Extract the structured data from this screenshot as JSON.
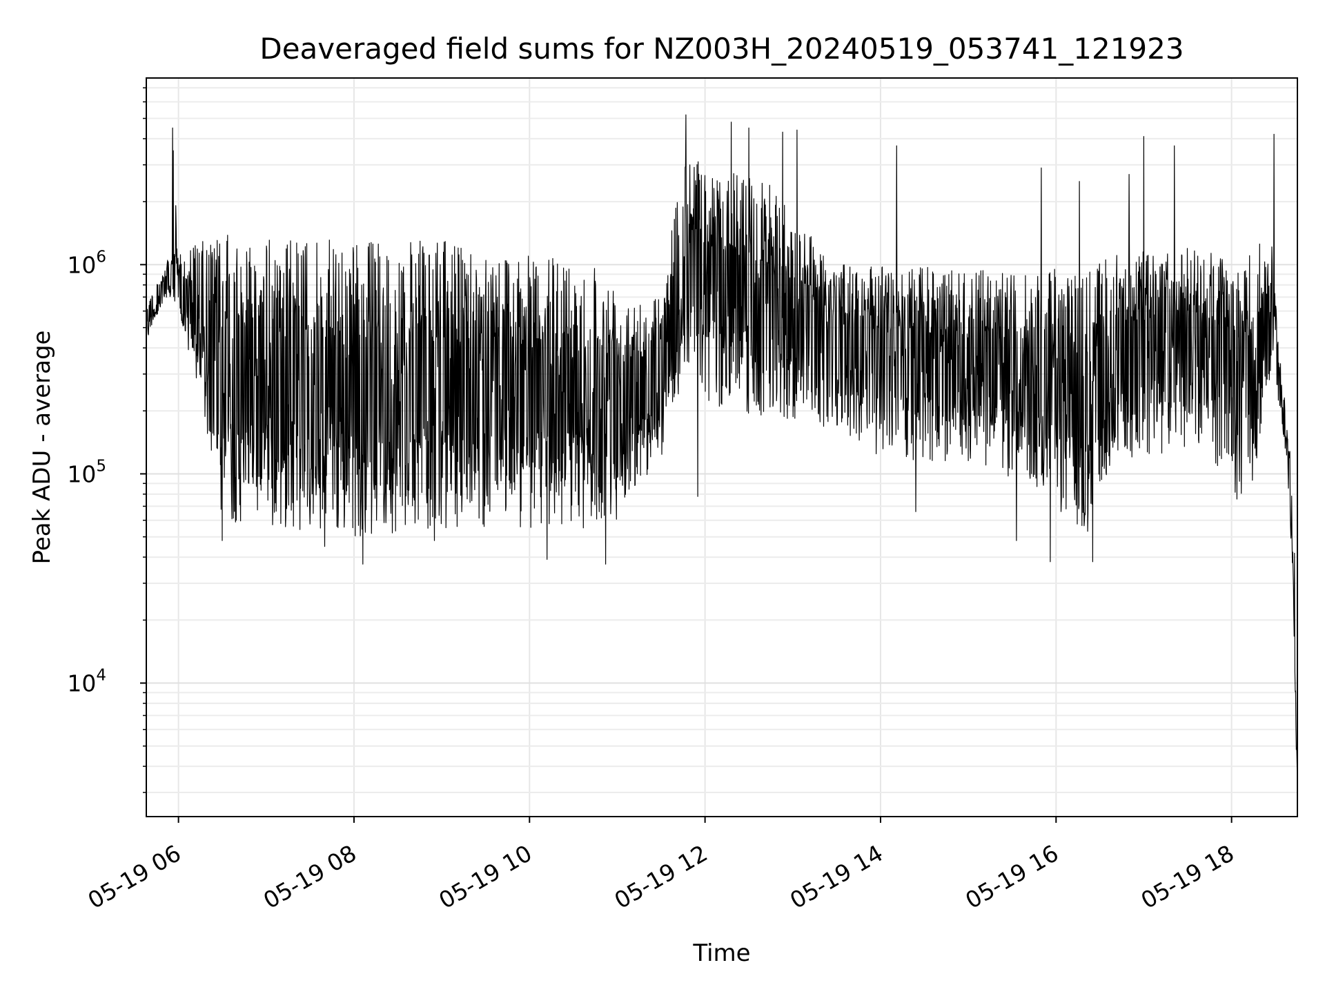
{
  "chart_data": {
    "type": "line",
    "title": "Deaveraged field sums for NZ003H_20240519_053741_121923",
    "xlabel": "Time",
    "ylabel": "Peak ADU - average",
    "yscale": "log",
    "grid": true,
    "legend": "none",
    "xlim": [
      "2024-05-19 05:38",
      "2024-05-19 18:45"
    ],
    "ylim": [
      2300,
      7800000
    ],
    "x_ticks": [
      "05-19 06",
      "05-19 08",
      "05-19 10",
      "05-19 12",
      "05-19 14",
      "05-19 16",
      "05-19 18"
    ],
    "y_ticks": [
      {
        "base": "10",
        "exp": "4",
        "value": 10000
      },
      {
        "base": "10",
        "exp": "5",
        "value": 100000
      },
      {
        "base": "10",
        "exp": "6",
        "value": 1000000
      }
    ],
    "line_color": "#000000",
    "series": [
      {
        "points": [
          [
            "2024-05-19 05:38",
            450000
          ],
          [
            "2024-05-19 05:45",
            650000
          ],
          [
            "2024-05-19 05:50",
            900000
          ],
          [
            "2024-05-19 05:55",
            950000
          ],
          [
            "2024-05-19 05:56",
            4500000
          ],
          [
            "2024-05-19 06:00",
            800000
          ],
          [
            "2024-05-19 06:10",
            500000
          ],
          [
            "2024-05-19 06:20",
            300000
          ],
          [
            "2024-05-19 06:30",
            250000
          ],
          [
            "2024-05-19 07:00",
            220000
          ],
          [
            "2024-05-19 08:00",
            200000
          ],
          [
            "2024-05-19 09:00",
            190000
          ],
          [
            "2024-05-19 10:00",
            200000
          ],
          [
            "2024-05-19 11:00",
            230000
          ],
          [
            "2024-05-19 11:40",
            350000
          ],
          [
            "2024-05-19 11:50",
            900000
          ],
          [
            "2024-05-19 12:00",
            700000
          ],
          [
            "2024-05-19 12:30",
            650000
          ],
          [
            "2024-05-19 13:00",
            600000
          ],
          [
            "2024-05-19 13:15",
            450000
          ],
          [
            "2024-05-19 14:00",
            380000
          ],
          [
            "2024-05-19 15:00",
            300000
          ],
          [
            "2024-05-19 16:00",
            230000
          ],
          [
            "2024-05-19 16:20",
            140000
          ],
          [
            "2024-05-19 16:45",
            300000
          ],
          [
            "2024-05-19 17:00",
            400000
          ],
          [
            "2024-05-19 18:00",
            380000
          ],
          [
            "2024-05-19 18:15",
            250000
          ],
          [
            "2024-05-19 18:28",
            900000
          ],
          [
            "2024-05-19 18:35",
            250000
          ],
          [
            "2024-05-19 18:40",
            120000
          ],
          [
            "2024-05-19 18:43",
            40000
          ],
          [
            "2024-05-19 18:45",
            3000
          ]
        ],
        "spread": [
          [
            "2024-05-19 05:38",
            500000,
            650000
          ],
          [
            "2024-05-19 05:55",
            700000,
            1100000
          ],
          [
            "2024-05-19 06:10",
            320000,
            1250000
          ],
          [
            "2024-05-19 06:25",
            100000,
            1350000
          ],
          [
            "2024-05-19 06:30",
            60000,
            1400000
          ],
          [
            "2024-05-19 07:00",
            55000,
            1350000
          ],
          [
            "2024-05-19 08:00",
            50000,
            1300000
          ],
          [
            "2024-05-19 09:00",
            55000,
            1300000
          ],
          [
            "2024-05-19 10:00",
            55000,
            1100000
          ],
          [
            "2024-05-19 10:45",
            55000,
            1050000
          ],
          [
            "2024-05-19 11:00",
            60000,
            800000
          ],
          [
            "2024-05-19 11:30",
            120000,
            700000
          ],
          [
            "2024-05-19 11:45",
            350000,
            3500000
          ],
          [
            "2024-05-19 12:00",
            220000,
            3000000
          ],
          [
            "2024-05-19 12:40",
            180000,
            2600000
          ],
          [
            "2024-05-19 13:10",
            180000,
            1500000
          ],
          [
            "2024-05-19 13:30",
            160000,
            1000000
          ],
          [
            "2024-05-19 14:00",
            120000,
            1000000
          ],
          [
            "2024-05-19 15:00",
            110000,
            950000
          ],
          [
            "2024-05-19 15:45",
            90000,
            900000
          ],
          [
            "2024-05-19 16:10",
            55000,
            1000000
          ],
          [
            "2024-05-19 16:25",
            50000,
            1000000
          ],
          [
            "2024-05-19 16:40",
            120000,
            1100000
          ],
          [
            "2024-05-19 17:00",
            120000,
            1200000
          ],
          [
            "2024-05-19 17:30",
            130000,
            1200000
          ],
          [
            "2024-05-19 18:00",
            100000,
            1100000
          ],
          [
            "2024-05-19 18:05",
            65000,
            900000
          ],
          [
            "2024-05-19 18:15",
            90000,
            1300000
          ],
          [
            "2024-05-19 18:28",
            350000,
            1300000
          ],
          [
            "2024-05-19 18:33",
            200000,
            300000
          ],
          [
            "2024-05-19 18:38",
            110000,
            140000
          ],
          [
            "2024-05-19 18:42",
            30000,
            40000
          ],
          [
            "2024-05-19 18:45",
            2500,
            3500
          ]
        ],
        "peaks": [
          [
            "2024-05-19 05:56",
            4500000
          ],
          [
            "2024-05-19 11:47",
            5200000
          ],
          [
            "2024-05-19 12:18",
            4800000
          ],
          [
            "2024-05-19 12:30",
            4500000
          ],
          [
            "2024-05-19 12:53",
            4300000
          ],
          [
            "2024-05-19 13:03",
            4400000
          ],
          [
            "2024-05-19 14:11",
            3700000
          ],
          [
            "2024-05-19 15:50",
            2900000
          ],
          [
            "2024-05-19 16:16",
            2500000
          ],
          [
            "2024-05-19 16:50",
            2700000
          ],
          [
            "2024-05-19 17:00",
            4100000
          ],
          [
            "2024-05-19 17:21",
            3700000
          ],
          [
            "2024-05-19 18:29",
            4200000
          ]
        ],
        "dips": [
          [
            "2024-05-19 06:30",
            48000
          ],
          [
            "2024-05-19 07:40",
            45000
          ],
          [
            "2024-05-19 08:06",
            37000
          ],
          [
            "2024-05-19 08:55",
            48000
          ],
          [
            "2024-05-19 10:12",
            39000
          ],
          [
            "2024-05-19 10:52",
            37000
          ],
          [
            "2024-05-19 11:55",
            78000
          ],
          [
            "2024-05-19 14:24",
            66000
          ],
          [
            "2024-05-19 15:33",
            48000
          ],
          [
            "2024-05-19 15:56",
            38000
          ],
          [
            "2024-05-19 16:25",
            38000
          ]
        ]
      }
    ]
  }
}
